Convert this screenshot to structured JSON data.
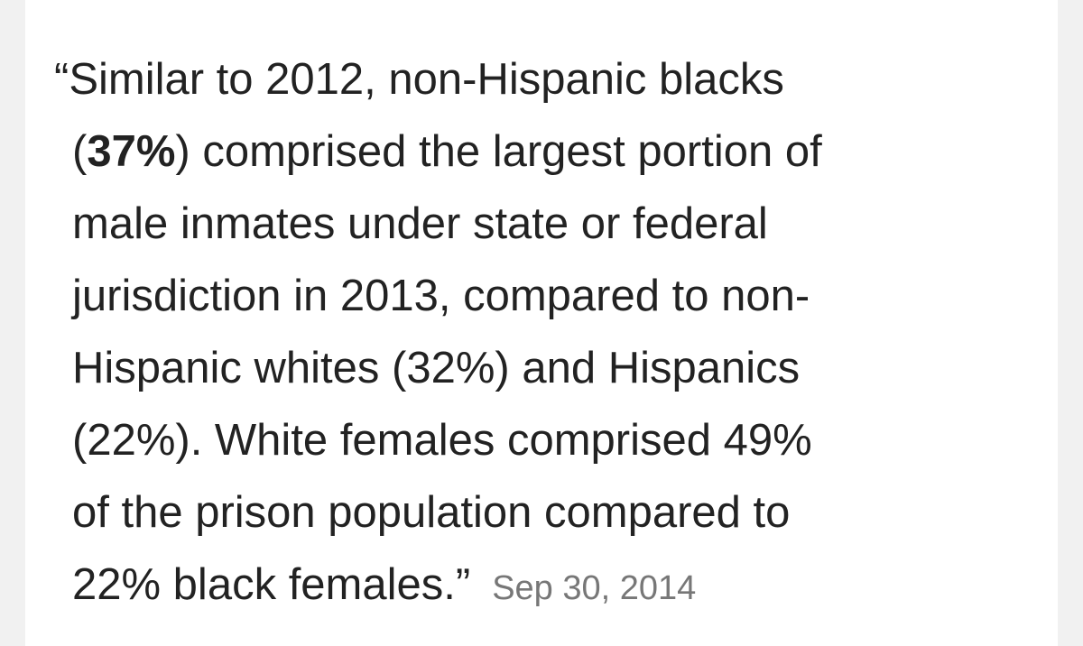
{
  "quote": {
    "lines": [
      [
        "“Similar to 2012, non-Hispanic blacks"
      ],
      [
        "(",
        "37%",
        ") comprised the largest portion of"
      ],
      [
        "male inmates under state or federal"
      ],
      [
        "jurisdiction in 2013, compared to non-"
      ],
      [
        "Hispanic whites (32%) and Hispanics"
      ],
      [
        "(22%). White females comprised 49%"
      ],
      [
        "of the prison population compared to"
      ],
      [
        "22% black females.”"
      ]
    ],
    "date": "Sep 30, 2014"
  }
}
